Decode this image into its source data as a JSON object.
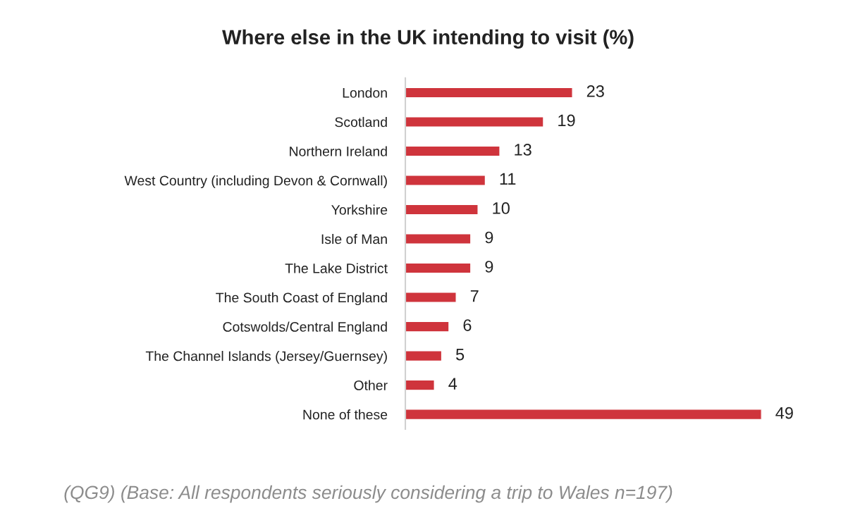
{
  "chart_data": {
    "type": "bar",
    "orientation": "horizontal",
    "title": "Where else in the UK intending to visit (%)",
    "categories": [
      "London",
      "Scotland",
      "Northern Ireland",
      "West Country (including Devon & Cornwall)",
      "Yorkshire",
      "Isle of Man",
      "The Lake District",
      "The South Coast of England",
      "Cotswolds/Central England",
      "The Channel Islands (Jersey/Guernsey)",
      "Other",
      "None of these"
    ],
    "values": [
      23,
      19,
      13,
      11,
      10,
      9,
      9,
      7,
      6,
      5,
      4,
      49
    ],
    "color": "#cf343c",
    "data_labels": true,
    "grid": false,
    "legend": false,
    "annotations": [
      "(QG9) (Base: All respondents seriously considering a trip to Wales n=197)"
    ]
  }
}
